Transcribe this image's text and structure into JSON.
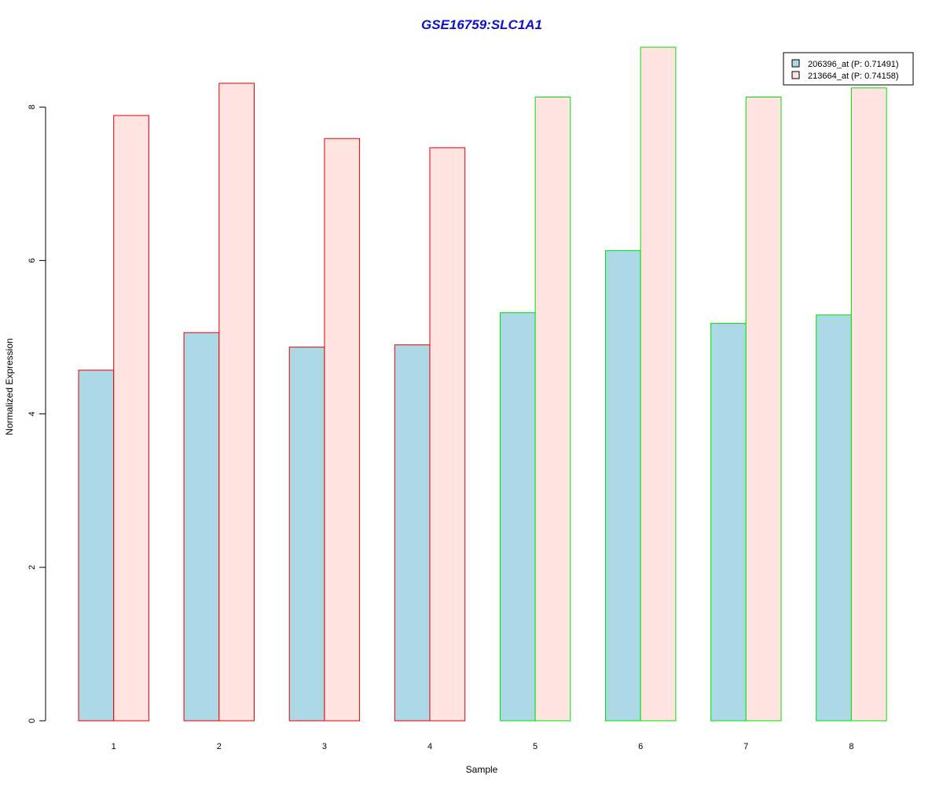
{
  "chart_data": {
    "type": "bar",
    "title": "GSE16759:SLC1A1",
    "title_color": "#1010cc",
    "xlabel": "Sample",
    "ylabel": "Normalized Expression",
    "categories": [
      "1",
      "2",
      "3",
      "4",
      "5",
      "6",
      "7",
      "8"
    ],
    "yticks": [
      "0",
      "2",
      "4",
      "6",
      "8"
    ],
    "ylim": [
      0,
      8.8
    ],
    "series": [
      {
        "name": "206396_at (P: 0.71491)",
        "fill": "#add8e6",
        "values": [
          4.57,
          5.06,
          4.87,
          4.9,
          5.32,
          6.13,
          5.18,
          5.29
        ]
      },
      {
        "name": "213664_at (P: 0.74158)",
        "fill": "#ffe4e1",
        "values": [
          7.89,
          8.31,
          7.59,
          7.47,
          8.13,
          8.78,
          8.13,
          8.25
        ]
      }
    ],
    "group_border_colors": [
      "#e00000",
      "#e00000",
      "#e00000",
      "#e00000",
      "#00e000",
      "#00e000",
      "#00e000",
      "#00e000"
    ],
    "legend_position": "top-right",
    "grid": false
  }
}
